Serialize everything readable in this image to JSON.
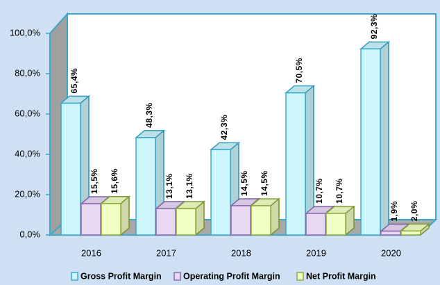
{
  "chart_data": {
    "type": "bar3d",
    "categories": [
      "2016",
      "2017",
      "2018",
      "2019",
      "2020"
    ],
    "series": [
      {
        "name": "Gross Profit Margin",
        "color": "#ccf6fc",
        "stroke": "#3aa8cc",
        "values": [
          65.4,
          48.3,
          42.3,
          70.5,
          92.3
        ],
        "value_labels": [
          "65,4%",
          "48,3%",
          "42,3%",
          "70,5%",
          "92,3%"
        ]
      },
      {
        "name": "Operating Profit Margin",
        "color": "#e8d8f2",
        "stroke": "#8a68b0",
        "values": [
          15.5,
          13.1,
          14.5,
          10.7,
          1.9
        ],
        "value_labels": [
          "15,5%",
          "13,1%",
          "14,5%",
          "10,7%",
          "1,9%"
        ]
      },
      {
        "name": "Net Profit Margin",
        "color": "#f2ffc4",
        "stroke": "#8caa3c",
        "values": [
          15.6,
          13.1,
          14.5,
          10.7,
          2.0
        ],
        "value_labels": [
          "15,6%",
          "13,1%",
          "14,5%",
          "10,7%",
          "2,0%"
        ]
      }
    ],
    "ylim": [
      0,
      100
    ],
    "yticks": [
      {
        "value": 0,
        "label": "0,0%"
      },
      {
        "value": 20,
        "label": "20,0%"
      },
      {
        "value": 40,
        "label": "40,0%"
      },
      {
        "value": 60,
        "label": "60,0%"
      },
      {
        "value": 80,
        "label": "80,0%"
      },
      {
        "value": 100,
        "label": "100,0%"
      }
    ],
    "legend": "bottom"
  }
}
